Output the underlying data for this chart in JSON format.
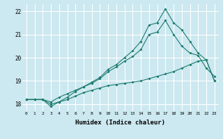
{
  "xlabel": "Humidex (Indice chaleur)",
  "background_color": "#cce8f0",
  "grid_color": "#ffffff",
  "line_color": "#1a7a6e",
  "xlim": [
    -0.5,
    23.5
  ],
  "ylim": [
    17.7,
    22.3
  ],
  "yticks": [
    18,
    19,
    20,
    21,
    22
  ],
  "xticks": [
    0,
    1,
    2,
    3,
    4,
    5,
    6,
    7,
    8,
    9,
    10,
    11,
    12,
    13,
    14,
    15,
    16,
    17,
    18,
    19,
    20,
    21,
    22,
    23
  ],
  "line1_x": [
    0,
    1,
    2,
    3,
    4,
    5,
    6,
    7,
    8,
    9,
    10,
    11,
    12,
    13,
    14,
    15,
    16,
    17,
    18,
    19,
    20,
    21,
    22,
    23
  ],
  "line1_y": [
    18.2,
    18.2,
    18.2,
    18.0,
    18.1,
    18.2,
    18.35,
    18.5,
    18.6,
    18.7,
    18.8,
    18.85,
    18.9,
    18.95,
    19.0,
    19.1,
    19.2,
    19.3,
    19.4,
    19.55,
    19.7,
    19.85,
    19.9,
    19.0
  ],
  "line2_x": [
    0,
    1,
    2,
    3,
    4,
    5,
    6,
    7,
    8,
    9,
    10,
    11,
    12,
    13,
    14,
    15,
    16,
    17,
    18,
    19,
    20,
    21,
    22,
    23
  ],
  "line2_y": [
    18.2,
    18.2,
    18.2,
    18.1,
    18.3,
    18.45,
    18.6,
    18.75,
    18.9,
    19.1,
    19.4,
    19.6,
    19.85,
    20.05,
    20.35,
    21.0,
    21.1,
    21.6,
    21.0,
    20.5,
    20.2,
    20.1,
    19.55,
    19.2
  ],
  "line3_x": [
    0,
    1,
    2,
    3,
    4,
    5,
    6,
    7,
    8,
    9,
    10,
    11,
    12,
    13,
    14,
    15,
    16,
    17,
    18,
    19,
    20,
    21,
    22,
    23
  ],
  "line3_y": [
    18.2,
    18.2,
    18.2,
    17.9,
    18.1,
    18.3,
    18.55,
    18.75,
    18.95,
    19.15,
    19.5,
    19.7,
    20.0,
    20.3,
    20.7,
    21.4,
    21.5,
    22.1,
    21.5,
    21.2,
    20.7,
    20.2,
    19.9,
    19.0
  ]
}
